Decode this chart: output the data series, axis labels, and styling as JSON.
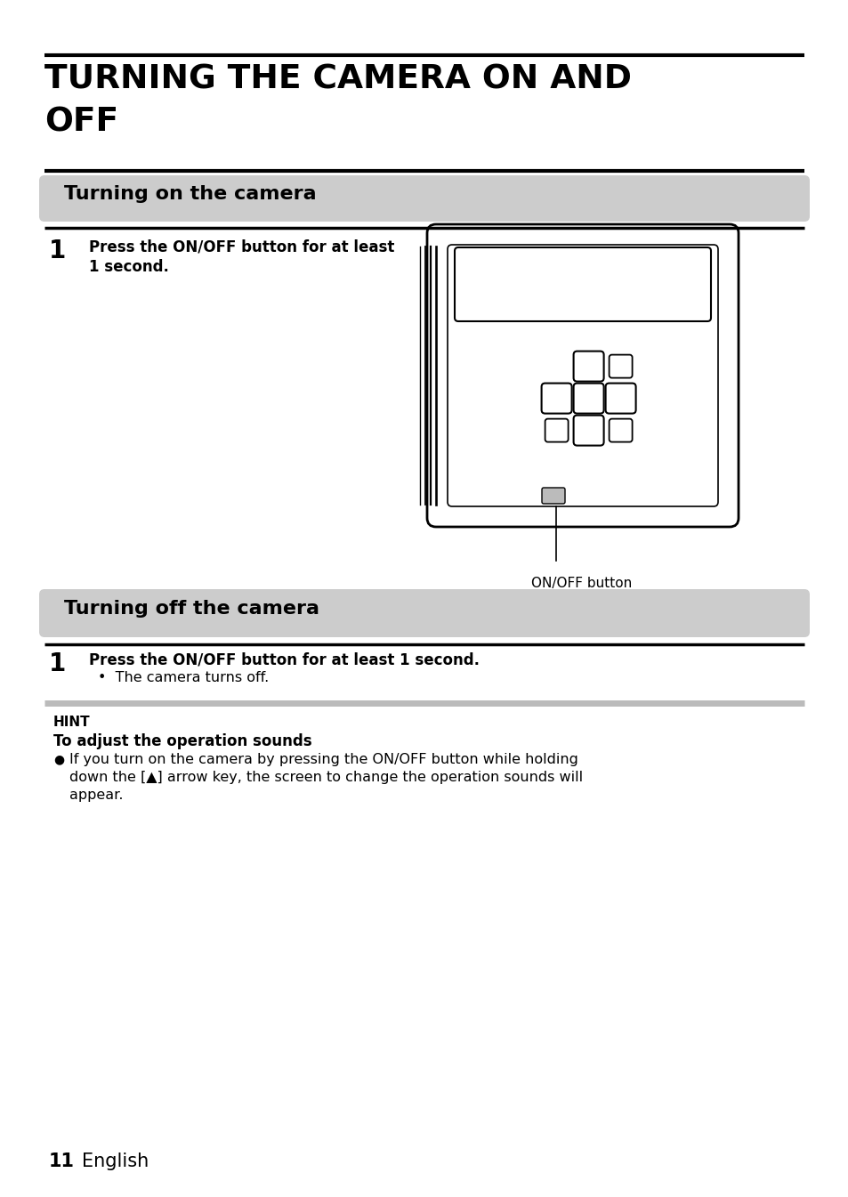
{
  "bg_color": "#ffffff",
  "main_title_line1": "TURNING THE CAMERA ON AND",
  "main_title_line2": "OFF",
  "section1_title": "Turning on the camera",
  "section1_step_num": "1",
  "section1_step_bold_line1": "Press the ON/OFF button for at least",
  "section1_step_bold_line2": "1 second.",
  "section2_title": "Turning off the camera",
  "section2_step_num": "1",
  "section2_step_bold": "Press the ON/OFF button for at least 1 second.",
  "section2_step_bullet": "The camera turns off.",
  "hint_label": "HINT",
  "hint_subtitle": "To adjust the operation sounds",
  "hint_body_line1": "If you turn on the camera by pressing the ON/OFF button while holding",
  "hint_body_line2": "down the [▲] arrow key, the screen to change the operation sounds will",
  "hint_body_line3": "appear.",
  "onoff_label": "ON/OFF button",
  "footer_num": "11",
  "footer_text": "English",
  "section_bg_color": "#cccccc",
  "hint_line_color": "#bbbbbb",
  "black_color": "#000000",
  "white_color": "#ffffff"
}
